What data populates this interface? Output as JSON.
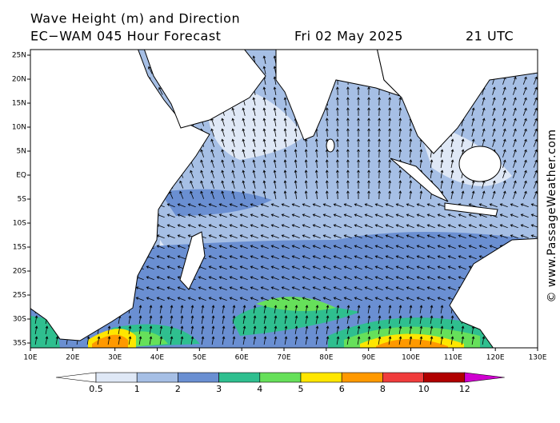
{
  "header": {
    "title": "Wave Height (m) and Direction",
    "subtitle": "EC−WAM 045 Hour Forecast",
    "date": "Fri 02 May 2025",
    "time": "21 UTC"
  },
  "map": {
    "lon_ticks": [
      {
        "value": 10,
        "label": "10E"
      },
      {
        "value": 20,
        "label": "20E"
      },
      {
        "value": 30,
        "label": "30E"
      },
      {
        "value": 40,
        "label": "40E"
      },
      {
        "value": 50,
        "label": "50E"
      },
      {
        "value": 60,
        "label": "60E"
      },
      {
        "value": 70,
        "label": "70E"
      },
      {
        "value": 80,
        "label": "80E"
      },
      {
        "value": 90,
        "label": "90E"
      },
      {
        "value": 100,
        "label": "100E"
      },
      {
        "value": 110,
        "label": "110E"
      },
      {
        "value": 120,
        "label": "120E"
      },
      {
        "value": 130,
        "label": "130E"
      }
    ],
    "lat_ticks": [
      {
        "value": 25,
        "label": "25N"
      },
      {
        "value": 20,
        "label": "20N"
      },
      {
        "value": 15,
        "label": "15N"
      },
      {
        "value": 10,
        "label": "10N"
      },
      {
        "value": 5,
        "label": "5N"
      },
      {
        "value": 0,
        "label": "EQ"
      },
      {
        "value": -5,
        "label": "5S"
      },
      {
        "value": -10,
        "label": "10S"
      },
      {
        "value": -15,
        "label": "15S"
      },
      {
        "value": -20,
        "label": "20S"
      },
      {
        "value": -25,
        "label": "25S"
      },
      {
        "value": -30,
        "label": "30S"
      },
      {
        "value": -35,
        "label": "35S"
      }
    ]
  },
  "colorbar": {
    "levels": [
      0.5,
      1,
      2,
      3,
      4,
      5,
      6,
      8,
      10,
      12
    ],
    "colors": [
      "#dfe8f6",
      "#a6bfe5",
      "#6a8fd2",
      "#2fbf8f",
      "#66e05a",
      "#ffe600",
      "#ff9900",
      "#f03c3c",
      "#b00000"
    ],
    "under_color": "#ffffff",
    "over_color": "#d000d0"
  },
  "watermark": "© www.PassageWeather.com"
}
